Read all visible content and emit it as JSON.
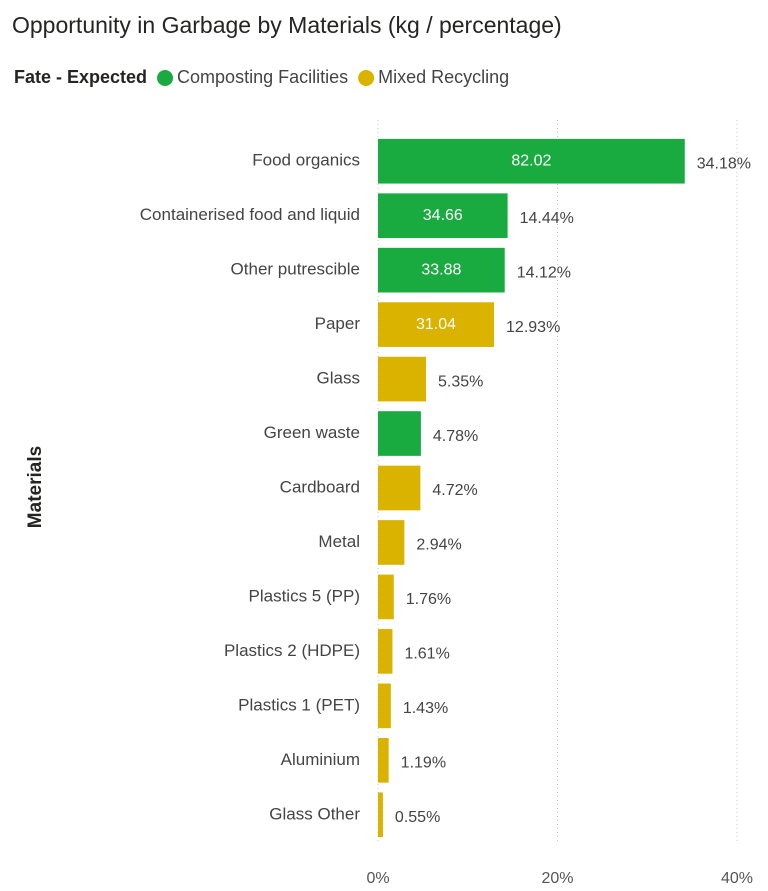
{
  "chart_data": {
    "type": "bar",
    "orientation": "horizontal",
    "title": "Opportunity in Garbage by Materials (kg / percentage)",
    "legend_title": "Fate - Expected",
    "y_label": "Materials",
    "categories": [
      "Food organics",
      "Containerised food and liquid",
      "Other putrescible",
      "Paper",
      "Glass",
      "Green waste",
      "Cardboard",
      "Metal",
      "Plastics 5 (PP)",
      "Plastics 2 (HDPE)",
      "Plastics 1 (PET)",
      "Aluminium",
      "Glass Other"
    ],
    "series": [
      {
        "name": "Composting Facilities",
        "color": "#1aab40",
        "values": [
          34.18,
          14.44,
          14.12,
          null,
          null,
          4.78,
          null,
          null,
          null,
          null,
          null,
          null,
          null
        ],
        "value_labels": [
          "34.18%",
          "14.44%",
          "14.12%",
          null,
          null,
          "4.78%",
          null,
          null,
          null,
          null,
          null,
          null,
          null
        ],
        "kg_labels": [
          82.02,
          34.66,
          33.88,
          null,
          null,
          null,
          null,
          null,
          null,
          null,
          null,
          null,
          null
        ]
      },
      {
        "name": "Mixed Recycling",
        "color": "#d9b300",
        "values": [
          null,
          null,
          null,
          12.93,
          5.35,
          null,
          4.72,
          2.94,
          1.76,
          1.61,
          1.43,
          1.19,
          0.55
        ],
        "value_labels": [
          null,
          null,
          null,
          "12.93%",
          "5.35%",
          null,
          "4.72%",
          "2.94%",
          "1.76%",
          "1.61%",
          "1.43%",
          "1.19%",
          "0.55%"
        ],
        "kg_labels": [
          null,
          null,
          null,
          31.04,
          null,
          null,
          null,
          null,
          null,
          null,
          null,
          null,
          null
        ]
      }
    ],
    "xlim": [
      0,
      40
    ],
    "xticks": [
      {
        "value": 0,
        "label": "0%"
      },
      {
        "value": 20,
        "label": "20%"
      },
      {
        "value": 40,
        "label": "40%"
      }
    ],
    "grid": true
  }
}
